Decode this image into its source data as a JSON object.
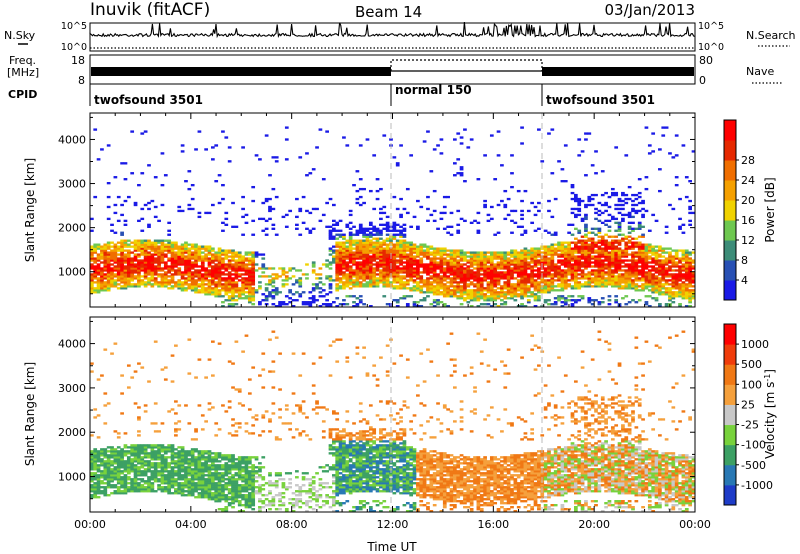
{
  "header": {
    "station": "Inuvik (fitACF)",
    "beam": "Beam 14",
    "date": "03/Jan/2013"
  },
  "noise_panel": {
    "left_label": "N.Sky",
    "right_label": "N.Search",
    "left_ticks": [
      "10^5",
      "10^0"
    ],
    "right_ticks": [
      "10^5",
      "10^0"
    ]
  },
  "freq_panel": {
    "left_label_line1": "Freq.",
    "left_label_line2": "[MHz]",
    "right_label": "Nave",
    "left_ticks": [
      "18",
      "8"
    ],
    "right_ticks": [
      "80",
      "0"
    ]
  },
  "cpid": {
    "label": "CPID",
    "segments": [
      {
        "name": "twofsound 3501",
        "start_hour": 0,
        "end_hour": 12
      },
      {
        "name": "normal 150",
        "start_hour": 12,
        "end_hour": 18
      },
      {
        "name": "twofsound 3501",
        "start_hour": 18,
        "end_hour": 24
      }
    ]
  },
  "chart_data": [
    {
      "type": "heatmap",
      "name": "power",
      "ylabel": "Slant Range [km]",
      "ylim": [
        200,
        4600
      ],
      "yticks": [
        "1000",
        "2000",
        "3000",
        "4000"
      ],
      "xlim": [
        0,
        24
      ],
      "colorbar": {
        "label": "Power [dB]",
        "ticks": [
          "4",
          "8",
          "12",
          "16",
          "20",
          "24",
          "28"
        ],
        "colors": [
          "#1a1ae6",
          "#2850b4",
          "#3c8c78",
          "#6ec850",
          "#f0d200",
          "#f5a000",
          "#f06e00",
          "#e62800",
          "#ff0000"
        ]
      }
    },
    {
      "type": "heatmap",
      "name": "velocity",
      "ylabel": "Slant Range [km]",
      "ylim": [
        200,
        4600
      ],
      "yticks": [
        "1000",
        "2000",
        "3000",
        "4000"
      ],
      "xlim": [
        0,
        24
      ],
      "xlabel": "Time UT",
      "xticks": [
        "00:00",
        "04:00",
        "08:00",
        "12:00",
        "16:00",
        "20:00",
        "00:00"
      ],
      "colorbar": {
        "label": "Velocity [m s^-1]",
        "ticks": [
          "1000",
          "500",
          "100",
          "25",
          "-25",
          "-100",
          "-500",
          "-1000"
        ],
        "colors": [
          "#1e3cc8",
          "#2878b4",
          "#3ca064",
          "#78d23c",
          "#c8c8c8",
          "#f5a03c",
          "#f07814",
          "#f03c0a",
          "#ff0000"
        ]
      }
    }
  ]
}
